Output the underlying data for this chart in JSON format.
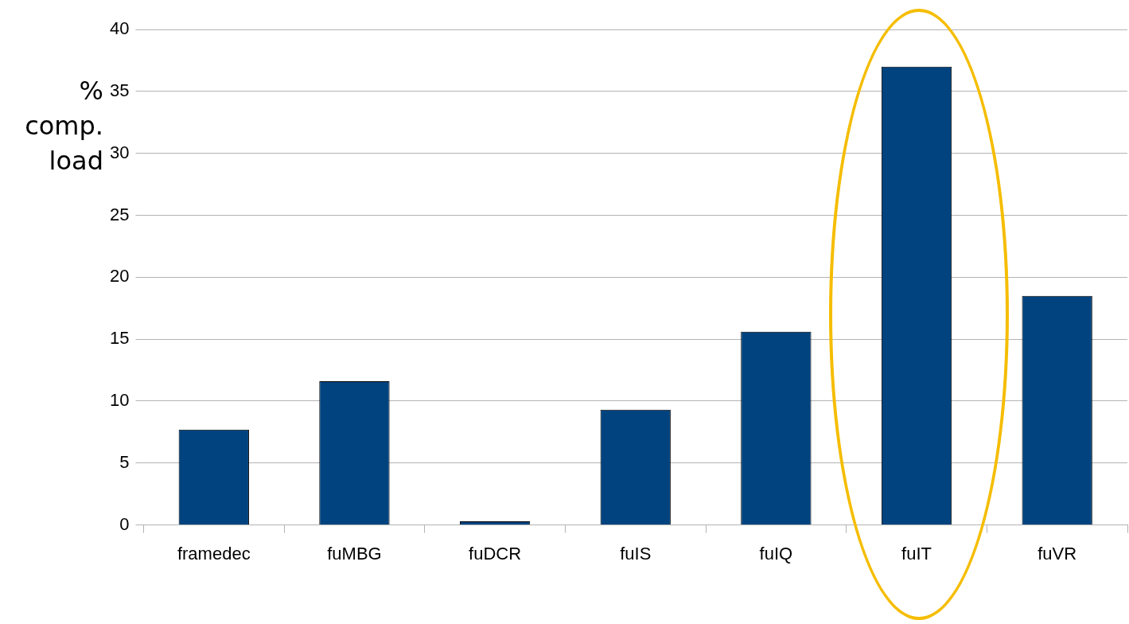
{
  "chart_data": {
    "type": "bar",
    "ylabel": "% comp. load",
    "categories": [
      "framedec",
      "fuMBG",
      "fuDCR",
      "fuIS",
      "fuIQ",
      "fuIT",
      "fuVR"
    ],
    "values": [
      7.7,
      11.6,
      0.3,
      9.3,
      15.6,
      37.0,
      18.5
    ],
    "color": "#00437f",
    "ylim": [
      0,
      40
    ],
    "yticks": [
      0,
      5,
      10,
      15,
      20,
      25,
      30,
      35,
      40
    ],
    "grid": "y"
  }
}
